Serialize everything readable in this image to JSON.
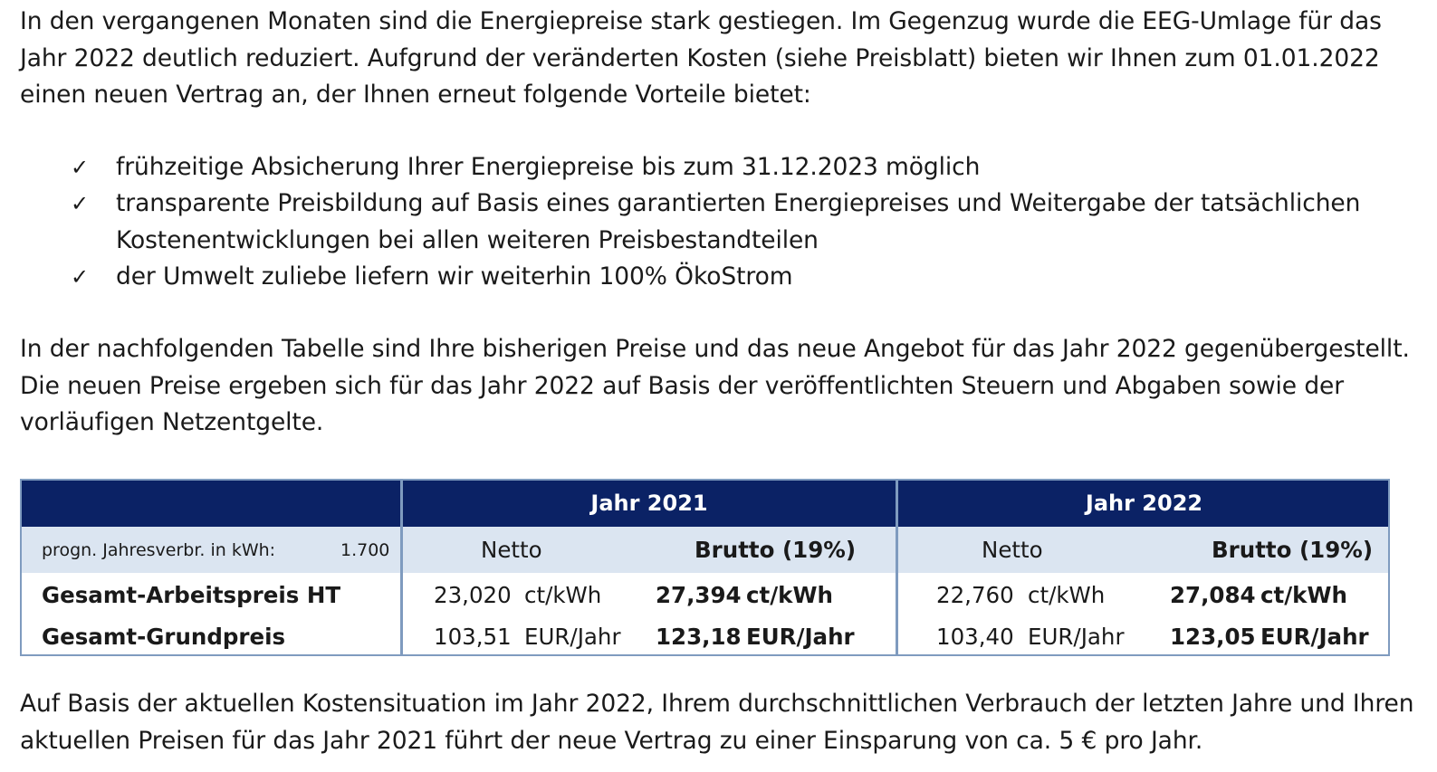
{
  "intro": "In den vergangenen Monaten sind die Energiepreise stark gestiegen. Im Gegenzug wurde die EEG-Umlage für das Jahr 2022 deutlich reduziert. Aufgrund der veränderten Kosten (siehe Preisblatt) bieten wir Ihnen zum 01.01.2022 einen neuen Vertrag an, der Ihnen erneut folgende Vorteile bietet:",
  "check_glyph": "✓",
  "bullets": [
    "frühzeitige Absicherung Ihrer Energiepreise bis zum 31.12.2023 möglich",
    "transparente Preisbildung auf Basis eines garantierten Energiepreises und Weitergabe der tatsächlichen Kostenentwicklungen bei allen weiteren Preisbestandteilen",
    "der Umwelt zuliebe liefern wir weiterhin 100% ÖkoStrom"
  ],
  "table_intro": "In der nachfolgenden Tabelle sind Ihre bisherigen Preise und das neue Angebot für das Jahr 2022 gegenübergestellt. Die neuen Preise ergeben sich für das Jahr 2022 auf Basis der veröffentlichten Steuern und Abgaben sowie der vorläufigen Netzentgelte.",
  "table": {
    "year1": "Jahr 2021",
    "year2": "Jahr 2022",
    "consumption_label": "progn. Jahresverbr. in kWh:",
    "consumption_value": "1.700",
    "netto": "Netto",
    "brutto": "Brutto (19%)",
    "rows": [
      {
        "label": "Gesamt-Arbeitspreis HT",
        "y2021_netto": "23,020",
        "y2021_netto_unit": "ct/kWh",
        "y2021_brutto": "27,394",
        "y2021_brutto_unit": "ct/kWh",
        "y2022_netto": "22,760",
        "y2022_netto_unit": "ct/kWh",
        "y2022_brutto": "27,084",
        "y2022_brutto_unit": "ct/kWh"
      },
      {
        "label": "Gesamt-Grundpreis",
        "y2021_netto": "103,51",
        "y2021_netto_unit": "EUR/Jahr",
        "y2021_brutto": "123,18",
        "y2021_brutto_unit": "EUR/Jahr",
        "y2022_netto": "103,40",
        "y2022_netto_unit": "EUR/Jahr",
        "y2022_brutto": "123,05",
        "y2022_brutto_unit": "EUR/Jahr"
      }
    ]
  },
  "conclusion": "Auf Basis der aktuellen Kostensituation im Jahr 2022, Ihrem durchschnittlichen Verbrauch der letzten Jahre und Ihren aktuellen Preisen für das Jahr 2021 führt der neue Vertrag zu einer Einsparung von ca. 5 € pro Jahr.",
  "colors": {
    "header_bg": "#0b2265",
    "subheader_bg": "#dbe5f1",
    "border": "#7f9bbf"
  }
}
